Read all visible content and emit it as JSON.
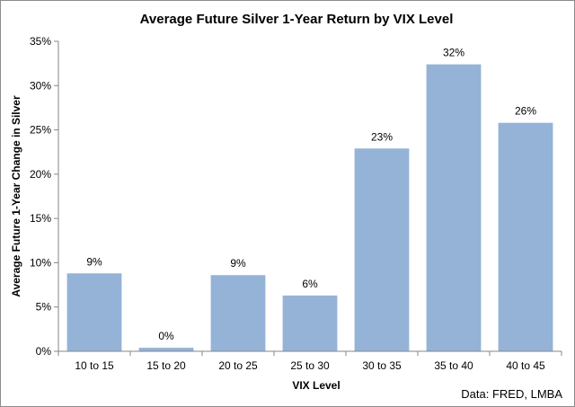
{
  "chart_data": {
    "type": "bar",
    "title": "Average Future Silver 1-Year Return by VIX Level",
    "xlabel": "VIX Level",
    "ylabel": "Average Future 1-Year Change in  Silver",
    "categories": [
      "10 to 15",
      "15 to 20",
      "20 to 25",
      "25 to 30",
      "30 to 35",
      "35 to 40",
      "40 to 45"
    ],
    "values": [
      8.8,
      0.4,
      8.6,
      6.3,
      22.9,
      32.4,
      25.8
    ],
    "data_labels": [
      "9%",
      "0%",
      "9%",
      "6%",
      "23%",
      "32%",
      "26%"
    ],
    "yticks": [
      "0%",
      "5%",
      "10%",
      "15%",
      "20%",
      "25%",
      "30%",
      "35%"
    ],
    "ylim": [
      0,
      35
    ],
    "grid": false,
    "legend": "none",
    "bar_color": "#95b3d7",
    "source": "Data: FRED, LMBA"
  }
}
